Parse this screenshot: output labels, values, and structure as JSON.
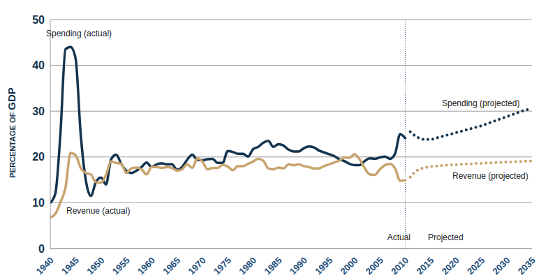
{
  "chart_data": {
    "type": "line",
    "y_label": "PERCENTAGE OF GDP",
    "annotations": [
      "Actual",
      "Projected"
    ],
    "divider_x": 2010,
    "xlim": [
      1940,
      2035
    ],
    "xticks": [
      1940,
      1945,
      1950,
      1955,
      1960,
      1965,
      1970,
      1975,
      1980,
      1985,
      1990,
      1995,
      2000,
      2005,
      2010,
      2015,
      2020,
      2025,
      2030,
      2035
    ],
    "ylim": [
      0,
      50
    ],
    "yticks": [
      0,
      10,
      20,
      30,
      40,
      50
    ],
    "grid": true,
    "series": [
      {
        "name": "Spending (actual)",
        "color": "#13344f",
        "line_style": "solid",
        "x": [
          1940,
          1941,
          1942,
          1943,
          1944,
          1945,
          1946,
          1947,
          1948,
          1949,
          1950,
          1951,
          1952,
          1953,
          1954,
          1955,
          1956,
          1957,
          1958,
          1959,
          1960,
          1961,
          1962,
          1963,
          1964,
          1965,
          1966,
          1967,
          1968,
          1969,
          1970,
          1971,
          1972,
          1973,
          1974,
          1975,
          1976,
          1977,
          1978,
          1979,
          1980,
          1981,
          1982,
          1983,
          1984,
          1985,
          1986,
          1987,
          1988,
          1989,
          1990,
          1991,
          1992,
          1993,
          1994,
          1995,
          1996,
          1997,
          1998,
          1999,
          2000,
          2001,
          2002,
          2003,
          2004,
          2005,
          2006,
          2007,
          2008,
          2009,
          2010
        ],
        "values": [
          10,
          12,
          25,
          43.5,
          44,
          41.5,
          25,
          15,
          11.5,
          14.5,
          15.5,
          14,
          19.5,
          20.5,
          18.5,
          17,
          16.5,
          17,
          17.8,
          18.8,
          17.8,
          18.4,
          18.6,
          18.4,
          18.4,
          17.2,
          17.8,
          19.4,
          20.5,
          19.4,
          19.3,
          19.5,
          19.6,
          18.7,
          18.7,
          21.3,
          21.1,
          20.7,
          20.7,
          20.1,
          21.7,
          22.2,
          23.1,
          23.5,
          22.2,
          22.8,
          22.5,
          21.6,
          21.2,
          21.2,
          21.9,
          22.3,
          22.1,
          21.4,
          21,
          20.6,
          20.2,
          19.5,
          19.1,
          18.5,
          18.2,
          18.2,
          19.1,
          19.7,
          19.6,
          19.9,
          20.1,
          19.6,
          20.7,
          25,
          24.1
        ]
      },
      {
        "name": "Revenue (actual)",
        "color": "#c8a46e",
        "line_style": "solid",
        "x": [
          1940,
          1941,
          1942,
          1943,
          1944,
          1945,
          1946,
          1947,
          1948,
          1949,
          1950,
          1951,
          1952,
          1953,
          1954,
          1955,
          1956,
          1957,
          1958,
          1959,
          1960,
          1961,
          1962,
          1963,
          1964,
          1965,
          1966,
          1967,
          1968,
          1969,
          1970,
          1971,
          1972,
          1973,
          1974,
          1975,
          1976,
          1977,
          1978,
          1979,
          1980,
          1981,
          1982,
          1983,
          1984,
          1985,
          1986,
          1987,
          1988,
          1989,
          1990,
          1991,
          1992,
          1993,
          1994,
          1995,
          1996,
          1997,
          1998,
          1999,
          2000,
          2001,
          2002,
          2003,
          2004,
          2005,
          2006,
          2007,
          2008,
          2009,
          2010
        ],
        "values": [
          6.8,
          7.6,
          10.1,
          13.3,
          20.9,
          20.4,
          17.6,
          16.5,
          16.2,
          14.5,
          14.4,
          16.1,
          19,
          18.7,
          18.5,
          16.5,
          17.5,
          17.7,
          17.3,
          16.2,
          17.8,
          17.8,
          17.6,
          17.8,
          17.6,
          17,
          17.3,
          18.4,
          17.6,
          19.7,
          19,
          17.3,
          17.6,
          17.6,
          18.3,
          17.9,
          17.1,
          18,
          18,
          18.5,
          19,
          19.6,
          19.2,
          17.5,
          17.3,
          17.7,
          17.5,
          18.4,
          18.2,
          18.4,
          18,
          17.8,
          17.5,
          17.5,
          18,
          18.4,
          18.8,
          19.2,
          19.9,
          19.8,
          20.6,
          19.5,
          17.6,
          16.2,
          16.1,
          17.3,
          18.2,
          18.5,
          17.5,
          14.8,
          14.9
        ]
      },
      {
        "name": "Spending (projected)",
        "color": "#13344f",
        "line_style": "dotted",
        "x": [
          2011,
          2012,
          2013,
          2014,
          2015,
          2016,
          2017,
          2018,
          2019,
          2020,
          2021,
          2022,
          2023,
          2024,
          2025,
          2026,
          2027,
          2028,
          2029,
          2030,
          2031,
          2032,
          2033,
          2034,
          2035
        ],
        "values": [
          25.5,
          24.6,
          24,
          23.8,
          23.8,
          24.1,
          24.4,
          24.7,
          25,
          25.3,
          25.6,
          25.9,
          26.2,
          26.5,
          26.8,
          27.2,
          27.6,
          28,
          28.4,
          28.8,
          29.2,
          29.6,
          30,
          30.3,
          30.6
        ]
      },
      {
        "name": "Revenue (projected)",
        "color": "#c8a46e",
        "line_style": "dotted",
        "x": [
          2011,
          2012,
          2013,
          2014,
          2015,
          2016,
          2017,
          2018,
          2019,
          2020,
          2021,
          2022,
          2023,
          2024,
          2025,
          2026,
          2027,
          2028,
          2029,
          2030,
          2031,
          2032,
          2033,
          2034,
          2035
        ],
        "values": [
          15.6,
          16.8,
          17.4,
          17.7,
          17.9,
          18,
          18.1,
          18.2,
          18.3,
          18.3,
          18.4,
          18.5,
          18.5,
          18.6,
          18.6,
          18.7,
          18.7,
          18.8,
          18.8,
          18.9,
          18.9,
          19,
          19,
          19.1,
          19.1
        ]
      }
    ]
  }
}
